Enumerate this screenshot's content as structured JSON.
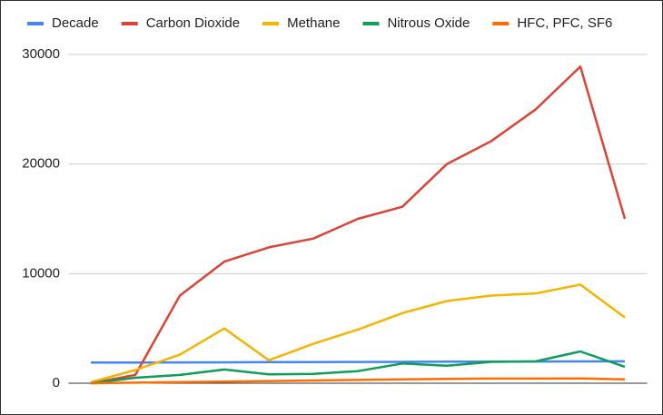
{
  "chart_data": {
    "type": "line",
    "categories": [
      null,
      null,
      null,
      null,
      null,
      null,
      null,
      null,
      null,
      null,
      null,
      null,
      null
    ],
    "series": [
      {
        "name": "Decade",
        "color": "#4285f4",
        "values": [
          1880,
          1890,
          1900,
          1910,
          1920,
          1930,
          1940,
          1950,
          1960,
          1970,
          1980,
          1990,
          2000
        ]
      },
      {
        "name": "Carbon Dioxide",
        "color": "#db4437",
        "values": [
          0,
          750,
          8000,
          11100,
          12400,
          13200,
          15000,
          16100,
          20000,
          22100,
          25000,
          28900,
          15000
        ]
      },
      {
        "name": "Methane",
        "color": "#f4b400",
        "values": [
          100,
          1200,
          2600,
          5000,
          2100,
          3600,
          4900,
          6400,
          7500,
          8000,
          8200,
          9000,
          6000
        ]
      },
      {
        "name": "Nitrous Oxide",
        "color": "#0f9d58",
        "values": [
          0,
          500,
          750,
          1250,
          800,
          850,
          1100,
          1800,
          1600,
          1950,
          2000,
          2900,
          1500
        ]
      },
      {
        "name": "HFC, PFC, SF6",
        "color": "#ff6d01",
        "values": [
          0,
          50,
          100,
          150,
          200,
          250,
          300,
          350,
          400,
          420,
          420,
          430,
          350
        ]
      }
    ],
    "ylim": [
      0,
      30000
    ],
    "yticks": [
      0,
      10000,
      20000,
      30000
    ],
    "grid": true,
    "legend": "top"
  }
}
